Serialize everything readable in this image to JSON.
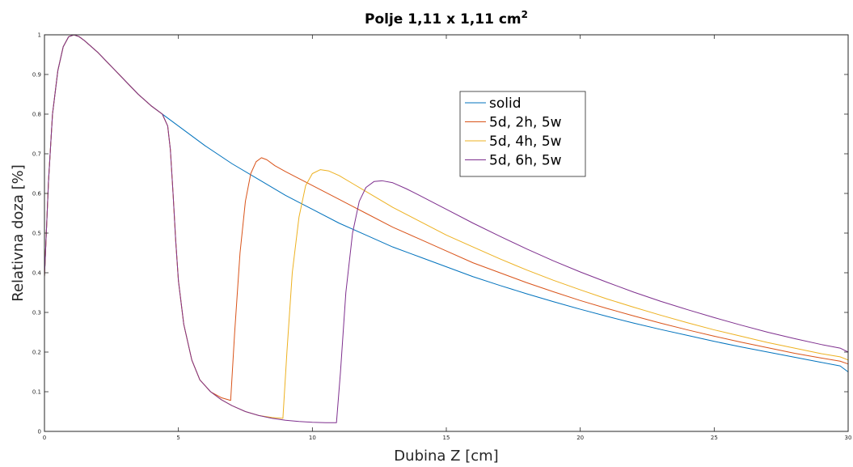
{
  "chart_data": {
    "type": "line",
    "title": "Polje 1,11 x 1,11 cm",
    "title_superscript": "2",
    "xlabel": "Dubina Z [cm]",
    "ylabel": "Relativna doza [%]",
    "xlim": [
      0,
      30
    ],
    "ylim": [
      0,
      1
    ],
    "xticks": [
      0,
      5,
      10,
      15,
      20,
      25,
      30
    ],
    "yticks": [
      0,
      0.1,
      0.2,
      0.3,
      0.4,
      0.5,
      0.6,
      0.7,
      0.8,
      0.9,
      1
    ],
    "xtick_labels": [
      "0",
      "5",
      "10",
      "15",
      "20",
      "25",
      "30"
    ],
    "ytick_labels": [
      "0",
      "0.1",
      "0.2",
      "0.3",
      "0.4",
      "0.5",
      "0.6",
      "0.7",
      "0.8",
      "0.9",
      "1"
    ],
    "grid": false,
    "legend_position": "inside-top-center",
    "series": [
      {
        "name": "solid",
        "color": "#0072BD",
        "x": [
          0,
          0.15,
          0.3,
          0.5,
          0.7,
          0.9,
          1.1,
          1.3,
          1.5,
          2,
          2.5,
          3,
          3.5,
          4,
          4.5,
          5,
          6,
          7,
          8,
          9,
          10,
          11,
          12,
          13,
          14,
          15,
          16,
          17,
          18,
          19,
          20,
          21,
          22,
          23,
          24,
          25,
          26,
          27,
          28,
          29,
          29.7,
          30
        ],
        "y": [
          0.39,
          0.63,
          0.8,
          0.91,
          0.97,
          0.995,
          1.0,
          0.995,
          0.985,
          0.955,
          0.92,
          0.885,
          0.85,
          0.82,
          0.795,
          0.77,
          0.72,
          0.675,
          0.635,
          0.595,
          0.56,
          0.525,
          0.495,
          0.465,
          0.44,
          0.415,
          0.39,
          0.368,
          0.347,
          0.327,
          0.308,
          0.29,
          0.273,
          0.257,
          0.242,
          0.227,
          0.213,
          0.2,
          0.187,
          0.174,
          0.165,
          0.15
        ]
      },
      {
        "name": "5d, 2h, 5w",
        "color": "#D95319",
        "x": [
          0,
          0.15,
          0.3,
          0.5,
          0.7,
          0.9,
          1.1,
          1.3,
          1.5,
          2,
          2.5,
          3,
          3.5,
          4,
          4.4,
          4.6,
          4.7,
          4.8,
          4.9,
          5.0,
          5.2,
          5.5,
          5.8,
          6.2,
          6.6,
          6.95,
          7.1,
          7.3,
          7.5,
          7.7,
          7.9,
          8.1,
          8.3,
          8.6,
          9,
          10,
          11,
          12,
          13,
          14,
          15,
          16,
          17,
          18,
          19,
          20,
          21,
          22,
          23,
          24,
          25,
          26,
          27,
          28,
          29,
          29.7,
          30
        ],
        "y": [
          0.39,
          0.63,
          0.8,
          0.91,
          0.97,
          0.995,
          1.0,
          0.995,
          0.985,
          0.955,
          0.92,
          0.885,
          0.85,
          0.82,
          0.8,
          0.77,
          0.71,
          0.6,
          0.48,
          0.38,
          0.27,
          0.18,
          0.13,
          0.1,
          0.085,
          0.078,
          0.25,
          0.45,
          0.58,
          0.65,
          0.68,
          0.69,
          0.685,
          0.67,
          0.655,
          0.62,
          0.585,
          0.55,
          0.515,
          0.485,
          0.455,
          0.425,
          0.4,
          0.375,
          0.352,
          0.33,
          0.31,
          0.291,
          0.273,
          0.256,
          0.24,
          0.225,
          0.211,
          0.197,
          0.185,
          0.177,
          0.17
        ]
      },
      {
        "name": "5d, 4h, 5w",
        "color": "#EDB120",
        "x": [
          0,
          0.15,
          0.3,
          0.5,
          0.7,
          0.9,
          1.1,
          1.3,
          1.5,
          2,
          2.5,
          3,
          3.5,
          4,
          4.4,
          4.6,
          4.7,
          4.8,
          4.9,
          5.0,
          5.2,
          5.5,
          5.8,
          6.2,
          6.6,
          7,
          7.5,
          8,
          8.5,
          8.9,
          9.05,
          9.25,
          9.5,
          9.75,
          10,
          10.3,
          10.6,
          11,
          11.5,
          12,
          13,
          14,
          15,
          16,
          17,
          18,
          19,
          20,
          21,
          22,
          23,
          24,
          25,
          26,
          27,
          28,
          29,
          29.7,
          30
        ],
        "y": [
          0.39,
          0.63,
          0.8,
          0.91,
          0.97,
          0.995,
          1.0,
          0.995,
          0.985,
          0.955,
          0.92,
          0.885,
          0.85,
          0.82,
          0.8,
          0.77,
          0.71,
          0.6,
          0.48,
          0.38,
          0.27,
          0.18,
          0.13,
          0.1,
          0.08,
          0.065,
          0.05,
          0.04,
          0.035,
          0.033,
          0.2,
          0.4,
          0.54,
          0.62,
          0.65,
          0.66,
          0.657,
          0.645,
          0.625,
          0.605,
          0.565,
          0.53,
          0.495,
          0.465,
          0.435,
          0.407,
          0.381,
          0.357,
          0.334,
          0.313,
          0.293,
          0.274,
          0.256,
          0.24,
          0.224,
          0.21,
          0.196,
          0.188,
          0.18
        ]
      },
      {
        "name": "5d, 6h, 5w",
        "color": "#7E2F8E",
        "x": [
          0,
          0.15,
          0.3,
          0.5,
          0.7,
          0.9,
          1.1,
          1.3,
          1.5,
          2,
          2.5,
          3,
          3.5,
          4,
          4.4,
          4.6,
          4.7,
          4.8,
          4.9,
          5.0,
          5.2,
          5.5,
          5.8,
          6.2,
          6.6,
          7,
          7.5,
          8,
          8.5,
          9,
          9.5,
          10,
          10.5,
          10.9,
          11.05,
          11.25,
          11.5,
          11.75,
          12,
          12.3,
          12.6,
          13,
          13.5,
          14,
          15,
          16,
          17,
          18,
          19,
          20,
          21,
          22,
          23,
          24,
          25,
          26,
          27,
          28,
          29,
          29.7,
          30
        ],
        "y": [
          0.39,
          0.63,
          0.8,
          0.91,
          0.97,
          0.995,
          1.0,
          0.995,
          0.985,
          0.955,
          0.92,
          0.885,
          0.85,
          0.82,
          0.8,
          0.77,
          0.71,
          0.6,
          0.48,
          0.38,
          0.27,
          0.18,
          0.13,
          0.1,
          0.08,
          0.065,
          0.05,
          0.04,
          0.033,
          0.028,
          0.025,
          0.023,
          0.022,
          0.022,
          0.15,
          0.35,
          0.5,
          0.58,
          0.615,
          0.63,
          0.632,
          0.627,
          0.612,
          0.595,
          0.56,
          0.525,
          0.492,
          0.46,
          0.43,
          0.402,
          0.376,
          0.351,
          0.328,
          0.307,
          0.287,
          0.268,
          0.25,
          0.234,
          0.219,
          0.21,
          0.2
        ]
      }
    ]
  }
}
